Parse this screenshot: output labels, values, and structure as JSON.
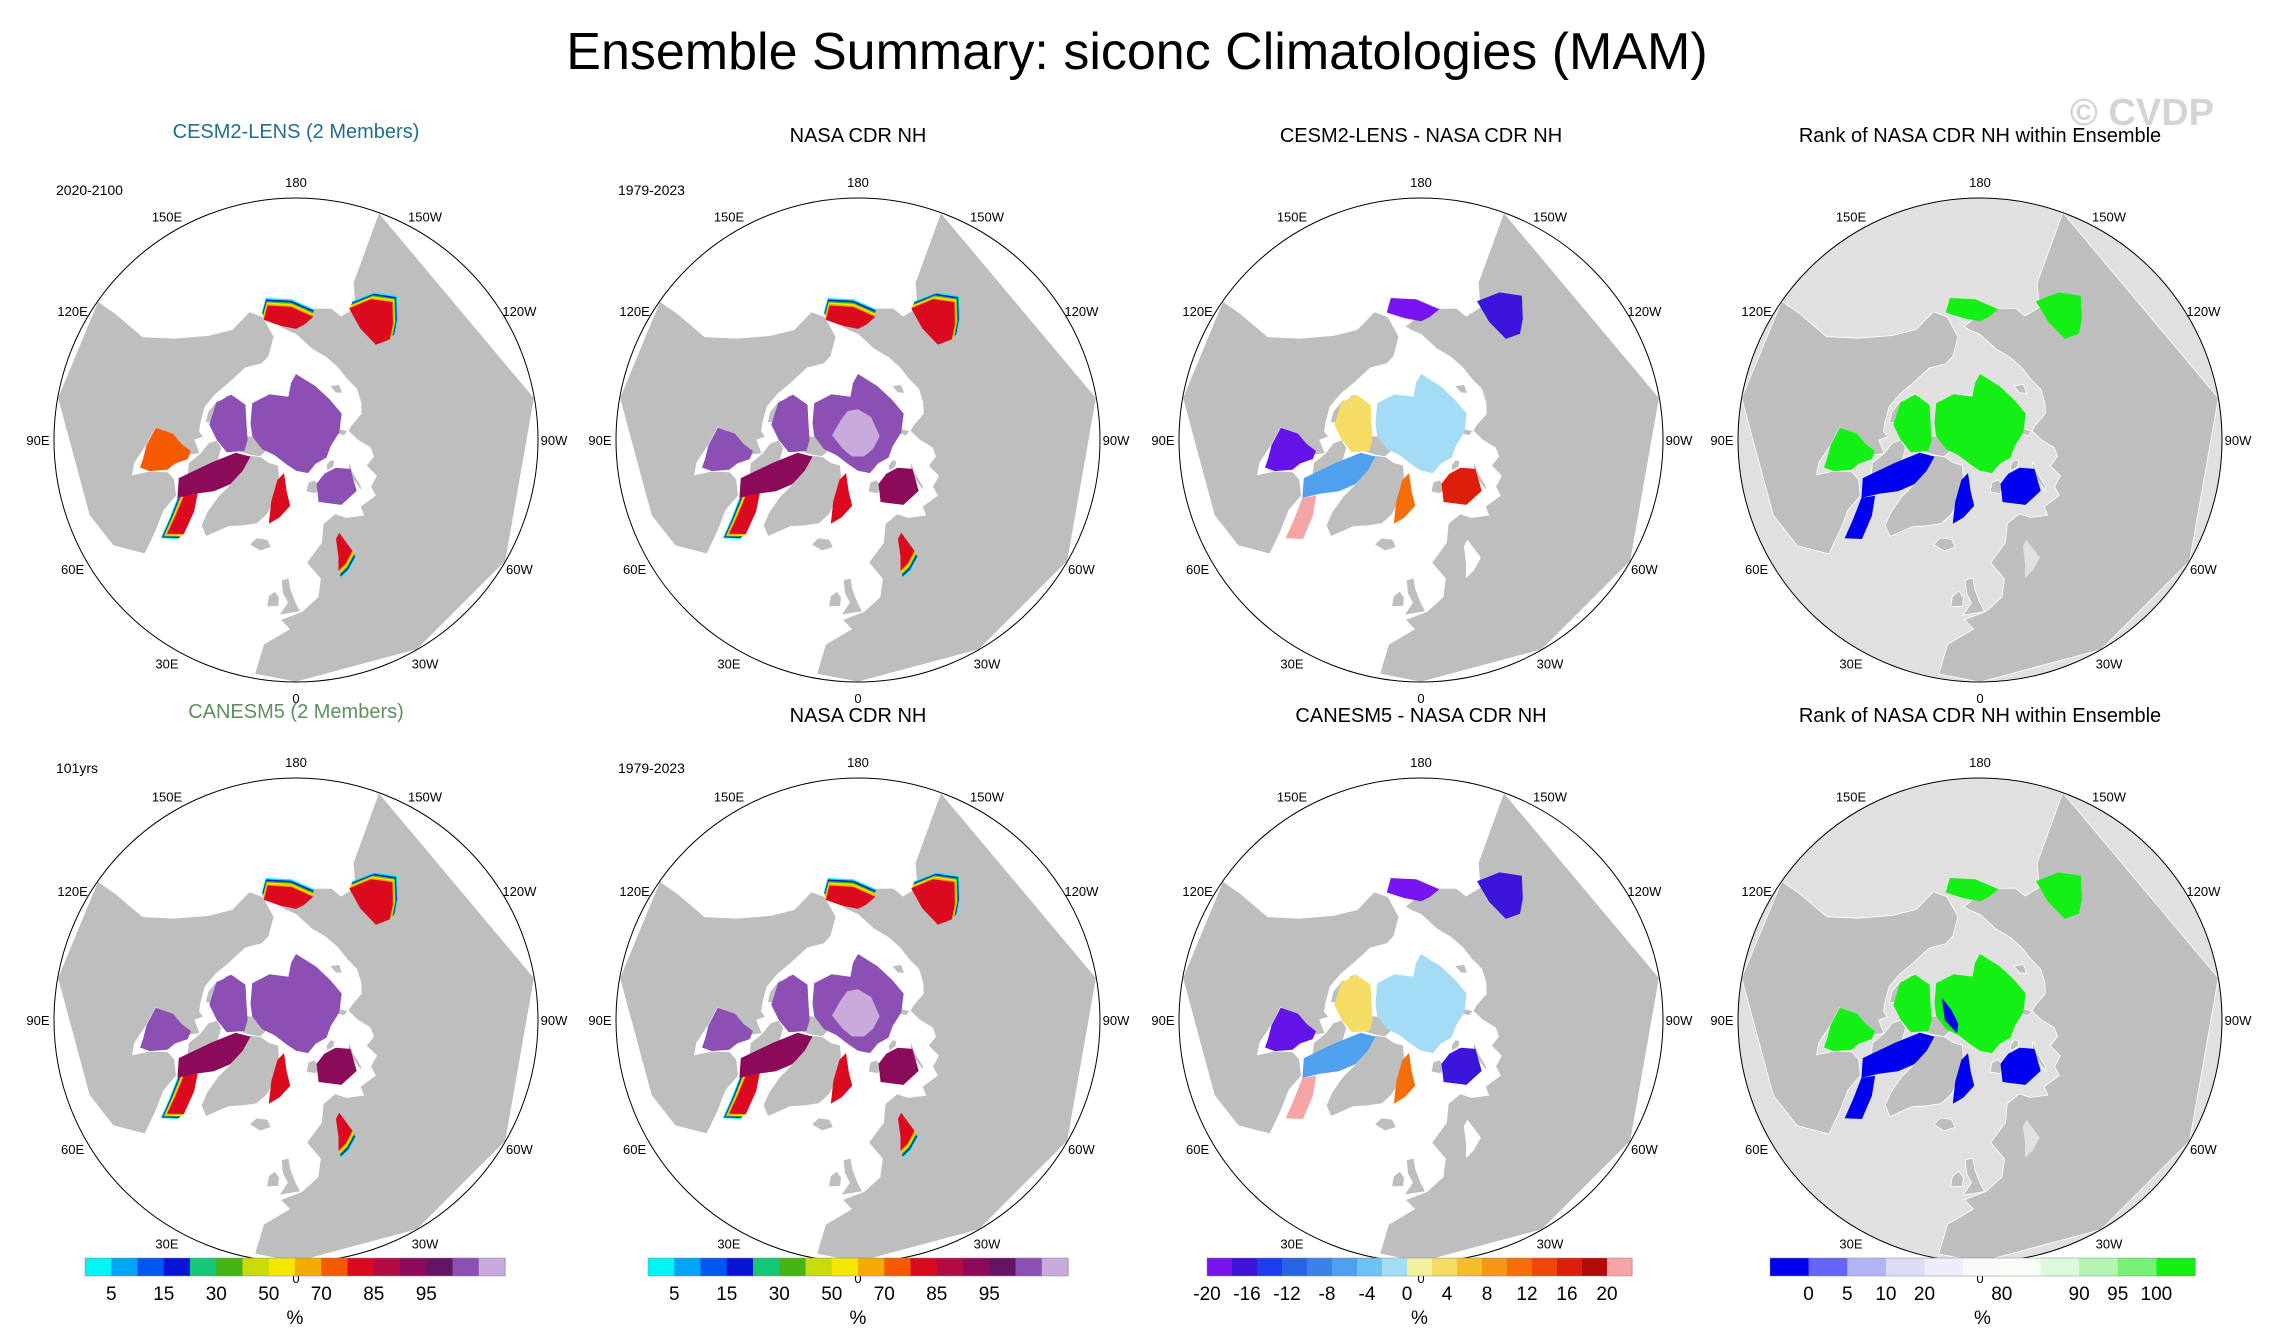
{
  "title": "Ensemble Summary: siconc Climatologies (MAM)",
  "watermark": "© CVDP",
  "lon_labels": [
    "180",
    "150E",
    "120E",
    "90E",
    "60E",
    "30E",
    "0",
    "30W",
    "60W",
    "90W",
    "120W",
    "150W"
  ],
  "colors": {
    "cesm_title": "#1f6e8c",
    "canesm_title": "#5f8f5f",
    "land": "#bebebe",
    "ocean": "#ffffff"
  },
  "panels": [
    {
      "id": "p1",
      "title": "CESM2-LENS (2 Members)",
      "period": "2020-2100",
      "kind": "conc",
      "variant": "cesm",
      "title_color": "cesm_title"
    },
    {
      "id": "p2",
      "title": "NASA CDR NH",
      "period": "1979-2023",
      "kind": "conc",
      "variant": "obs"
    },
    {
      "id": "p3",
      "title": "CESM2-LENS - NASA CDR NH",
      "period": "",
      "kind": "diff",
      "variant": "cesm"
    },
    {
      "id": "p4",
      "title": "Rank of NASA CDR NH within Ensemble",
      "period": "",
      "kind": "rank",
      "variant": "cesm"
    },
    {
      "id": "p5",
      "title": "CANESM5 (2 Members)",
      "period": "101yrs",
      "kind": "conc",
      "variant": "canesm",
      "title_color": "canesm_title"
    },
    {
      "id": "p6",
      "title": "NASA CDR NH",
      "period": "1979-2023",
      "kind": "conc",
      "variant": "obs"
    },
    {
      "id": "p7",
      "title": "CANESM5 - NASA CDR NH",
      "period": "",
      "kind": "diff",
      "variant": "canesm"
    },
    {
      "id": "p8",
      "title": "Rank of NASA CDR NH within Ensemble",
      "period": "",
      "kind": "rank",
      "variant": "canesm"
    }
  ],
  "colorbars": [
    {
      "id": "cb1",
      "unit": "%",
      "colors": [
        "#00f5f5",
        "#00a5f5",
        "#0055f5",
        "#0a14d8",
        "#14c878",
        "#46b414",
        "#c8dc0a",
        "#f5e600",
        "#f5aa00",
        "#f55a00",
        "#dc0a1e",
        "#b40a46",
        "#8c0a5a",
        "#641464",
        "#8c50b4",
        "#c8aadc"
      ],
      "tick_labels": [
        "5",
        "15",
        "30",
        "50",
        "70",
        "85",
        "95"
      ],
      "tick_positions": [
        1,
        3,
        5,
        7,
        9,
        11,
        13
      ]
    },
    {
      "id": "cb2",
      "unit": "%",
      "colors": [
        "#00f5f5",
        "#00a5f5",
        "#0055f5",
        "#0a14d8",
        "#14c878",
        "#46b414",
        "#c8dc0a",
        "#f5e600",
        "#f5aa00",
        "#f55a00",
        "#dc0a1e",
        "#b40a46",
        "#8c0a5a",
        "#641464",
        "#8c50b4",
        "#c8aadc"
      ],
      "tick_labels": [
        "5",
        "15",
        "30",
        "50",
        "70",
        "85",
        "95"
      ],
      "tick_positions": [
        1,
        3,
        5,
        7,
        9,
        11,
        13
      ]
    },
    {
      "id": "cb3",
      "unit": "%",
      "colors": [
        "#7814f0",
        "#3c14dc",
        "#1e3cf0",
        "#2864e6",
        "#3c82e6",
        "#50a0f0",
        "#6ec3f5",
        "#a5dcf5",
        "#f5f0a0",
        "#f5dc64",
        "#f5be28",
        "#f59614",
        "#f56e0a",
        "#f0460a",
        "#dc1e0a",
        "#b40a0a",
        "#f5a5a5"
      ],
      "tick_labels": [
        "-20",
        "-16",
        "-12",
        "-8",
        "-4",
        "0",
        "4",
        "8",
        "12",
        "16",
        "20"
      ],
      "tick_positions": [
        0,
        1.6,
        3.2,
        4.8,
        6.4,
        8,
        9.6,
        11.2,
        12.8,
        14.4,
        16
      ]
    },
    {
      "id": "cb4",
      "unit": "%",
      "colors": [
        "#0000f0",
        "#6464f5",
        "#b4b4f5",
        "#dcdcf5",
        "#eeeefa",
        "#fafafa",
        "#f5fff5",
        "#dcfadc",
        "#b4f5b4",
        "#78f078",
        "#14f014"
      ],
      "tick_labels": [
        "0",
        "5",
        "10",
        "20",
        "80",
        "90",
        "95",
        "100"
      ],
      "tick_positions": [
        1,
        2,
        3,
        4,
        6,
        8,
        9,
        10
      ]
    }
  ]
}
